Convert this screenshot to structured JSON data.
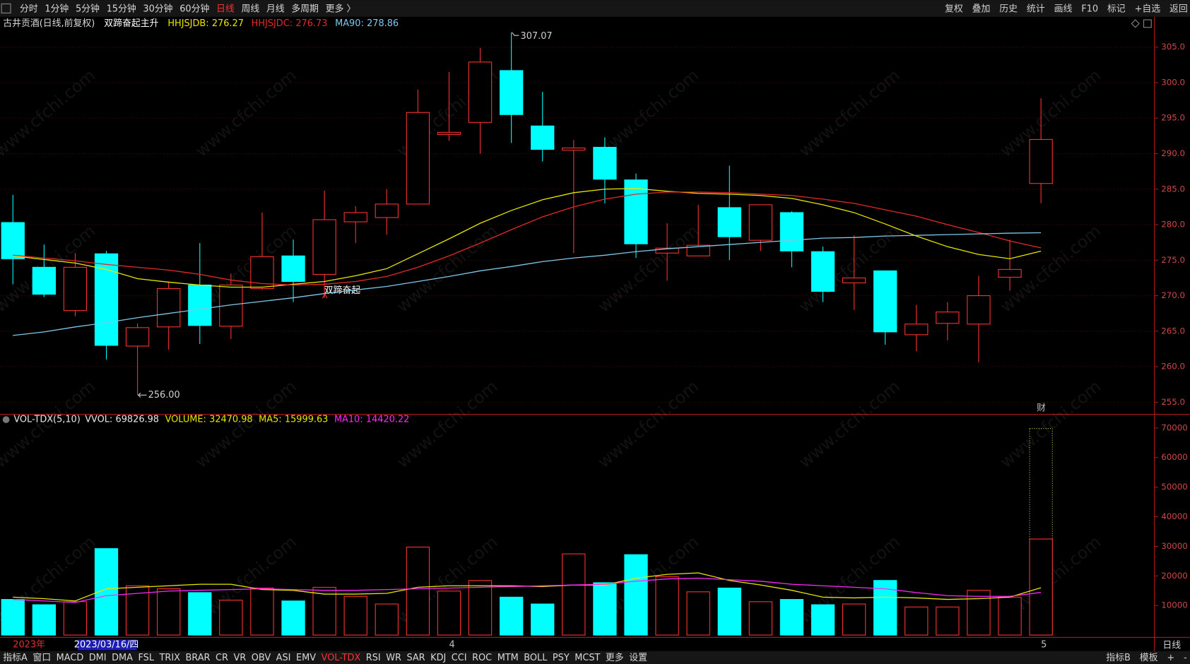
{
  "top_toolbar": {
    "periods": [
      "分时",
      "1分钟",
      "5分钟",
      "15分钟",
      "30分钟",
      "60分钟",
      "日线",
      "周线",
      "月线",
      "多周期",
      "更多 〉"
    ],
    "active": "日线",
    "tools": [
      "复权",
      "叠加",
      "历史",
      "统计",
      "画线",
      "F10",
      "标记",
      "+自选",
      "返回"
    ]
  },
  "bottom_toolbar": {
    "indicators": [
      "指标A",
      "窗口",
      "MACD",
      "DMI",
      "DMA",
      "FSL",
      "TRIX",
      "BRAR",
      "CR",
      "VR",
      "OBV",
      "ASI",
      "EMV",
      "VOL-TDX",
      "RSI",
      "WR",
      "SAR",
      "KDJ",
      "CCI",
      "ROC",
      "MTM",
      "BOLL",
      "PSY",
      "MCST",
      "更多",
      "设置"
    ],
    "active": "VOL-TDX",
    "right": [
      "指标B",
      "模板",
      "+",
      "-"
    ]
  },
  "period_label": "日线",
  "watermark": "www.cfchi.com",
  "chart_data": [
    {
      "type": "candlestick",
      "title": "古井贡酒(日线,前复权)",
      "subtitle": "双蹄奋起主升",
      "signal_label": "双蹄奋起",
      "event_label": "财",
      "high_label": "307.07",
      "low_label": "256.00",
      "up_color": "#ff3232",
      "down_color": "#00ffff",
      "grid": true,
      "categories": [
        "2023年",
        null,
        null,
        "2023/03/16/四",
        null,
        null,
        null,
        null,
        null,
        null,
        null,
        null,
        null,
        null,
        "4",
        null,
        null,
        null,
        null,
        null,
        null,
        null,
        null,
        null,
        null,
        null,
        null,
        null,
        null,
        null,
        null,
        null,
        null,
        "5"
      ],
      "open": [
        280.3,
        274.0,
        267.9,
        275.9,
        262.9,
        265.6,
        271.5,
        265.7,
        271.0,
        275.6,
        273.0,
        280.4,
        281.0,
        282.9,
        292.7,
        294.4,
        301.7,
        293.9,
        290.5,
        290.9,
        286.3,
        276.0,
        275.6,
        282.4,
        277.8,
        281.7,
        276.2,
        271.8,
        273.5,
        264.5,
        266.1,
        266.0,
        272.6,
        285.8
      ],
      "high": [
        284.2,
        277.2,
        276.0,
        276.3,
        266.1,
        272.0,
        277.4,
        273.1,
        281.7,
        277.9,
        284.8,
        282.6,
        285.0,
        299.0,
        301.5,
        304.9,
        307.07,
        298.7,
        291.9,
        292.3,
        287.2,
        280.2,
        282.8,
        288.3,
        282.8,
        281.9,
        276.9,
        278.5,
        273.5,
        268.7,
        269.1,
        272.8,
        277.9,
        297.8
      ],
      "low": [
        271.6,
        269.8,
        267.1,
        261.0,
        256.0,
        262.4,
        263.2,
        263.9,
        270.8,
        269.1,
        269.7,
        277.4,
        278.6,
        282.9,
        291.8,
        290.0,
        291.5,
        288.9,
        276.0,
        283.0,
        275.3,
        272.1,
        275.6,
        275.0,
        276.3,
        274.0,
        269.1,
        268.0,
        263.1,
        262.2,
        263.7,
        260.6,
        270.7,
        283.0
      ],
      "close": [
        275.2,
        270.2,
        274.0,
        263.0,
        265.5,
        271.0,
        265.8,
        271.5,
        275.5,
        272.0,
        280.7,
        281.7,
        282.9,
        295.8,
        293.0,
        302.9,
        295.5,
        290.6,
        290.8,
        286.4,
        277.3,
        276.7,
        277.1,
        278.3,
        282.8,
        276.3,
        270.6,
        272.5,
        264.9,
        266.0,
        267.7,
        270.0,
        273.7,
        292.0
      ],
      "series": [
        {
          "name": "HHJSJDB:",
          "color": "#e6e600",
          "values": [
            275.6,
            275.1,
            274.6,
            273.7,
            272.4,
            271.9,
            271.5,
            271.2,
            271.2,
            271.6,
            272.0,
            272.8,
            273.8,
            275.9,
            278.0,
            280.2,
            282.0,
            283.5,
            284.5,
            285.0,
            285.1,
            284.7,
            284.4,
            284.3,
            284.1,
            283.7,
            282.8,
            281.7,
            280.1,
            278.4,
            276.9,
            275.8,
            275.2,
            276.27
          ]
        },
        {
          "name": "HHJSJDC:",
          "color": "#e62828",
          "values": [
            275.7,
            275.3,
            274.9,
            274.4,
            274.0,
            273.6,
            273.0,
            272.2,
            271.7,
            271.5,
            271.6,
            272.0,
            272.7,
            274.0,
            275.6,
            277.4,
            279.3,
            281.1,
            282.5,
            283.6,
            284.3,
            284.6,
            284.6,
            284.5,
            284.3,
            284.1,
            283.6,
            283.0,
            282.1,
            281.2,
            280.0,
            278.9,
            277.7,
            276.73
          ]
        },
        {
          "name": "MA90:",
          "color": "#7ec8e8",
          "values": [
            264.4,
            264.9,
            265.6,
            266.2,
            266.9,
            267.5,
            268.1,
            268.7,
            269.2,
            269.7,
            270.3,
            270.8,
            271.3,
            272.0,
            272.7,
            273.5,
            274.1,
            274.8,
            275.3,
            275.7,
            276.2,
            276.6,
            276.9,
            277.2,
            277.5,
            277.8,
            278.1,
            278.2,
            278.4,
            278.5,
            278.6,
            278.7,
            278.8,
            278.86
          ]
        }
      ],
      "ylim": [
        253.4,
        307.35
      ],
      "yticks": [
        {
          "value": 255,
          "label": "255.0"
        },
        {
          "value": 260,
          "label": "260.0"
        },
        {
          "value": 265,
          "label": "265.0"
        },
        {
          "value": 270,
          "label": "270.0"
        },
        {
          "value": 275,
          "label": "275.0"
        },
        {
          "value": 280,
          "label": "280.0"
        },
        {
          "value": 285,
          "label": "285.0"
        },
        {
          "value": 290,
          "label": "290.0"
        },
        {
          "value": 295,
          "label": "295.0"
        },
        {
          "value": 300,
          "label": "300.0"
        },
        {
          "value": 305,
          "label": "305.0"
        }
      ]
    },
    {
      "type": "bar",
      "title": "VOL-TDX(5,10)",
      "up_color": "#ff3232",
      "down_color": "#00ffff",
      "grid": false,
      "series": [
        {
          "name": "VVOL:",
          "color": "#c8c850",
          "style": "dotted",
          "values": [
            null,
            null,
            null,
            null,
            null,
            null,
            null,
            null,
            null,
            null,
            null,
            null,
            null,
            null,
            null,
            null,
            null,
            null,
            null,
            null,
            null,
            null,
            null,
            null,
            null,
            null,
            null,
            null,
            null,
            null,
            null,
            null,
            null,
            69826.98
          ]
        },
        {
          "name": "VOLUME:",
          "color": "#e6e600",
          "style": "bar",
          "values": [
            12050,
            10260,
            11280,
            29230,
            16670,
            15640,
            14360,
            11790,
            15900,
            11540,
            16150,
            13080,
            10510,
            29740,
            14870,
            18460,
            12820,
            10510,
            27440,
            17690,
            27180,
            19740,
            14620,
            15900,
            11280,
            12050,
            10260,
            10510,
            18460,
            9490,
            9490,
            15130,
            12820,
            32470.98
          ]
        },
        {
          "name": "MA5:",
          "color": "#e6e600",
          "style": "line",
          "values": [
            12820,
            12310,
            11540,
            15640,
            16150,
            16670,
            17180,
            17180,
            15380,
            15130,
            13850,
            13850,
            14100,
            16150,
            16670,
            16670,
            16670,
            16410,
            16920,
            16920,
            19230,
            20510,
            21030,
            18460,
            16920,
            15130,
            12820,
            12560,
            12820,
            12560,
            12050,
            12310,
            12820,
            15999.63
          ]
        },
        {
          "name": "MA10:",
          "color": "#ff28ff",
          "style": "line",
          "values": [
            12050,
            11540,
            11030,
            13330,
            14100,
            14870,
            15130,
            15380,
            15640,
            15380,
            15130,
            15130,
            15380,
            15640,
            15900,
            16150,
            16410,
            16670,
            16920,
            17180,
            18210,
            18970,
            19230,
            18720,
            18210,
            17180,
            16670,
            16150,
            15640,
            14360,
            13330,
            13080,
            13080,
            14420.22
          ]
        }
      ],
      "ylim": [
        0,
        74100
      ],
      "yticks": [
        10000,
        20000,
        30000,
        40000,
        50000,
        60000,
        70000
      ]
    }
  ]
}
